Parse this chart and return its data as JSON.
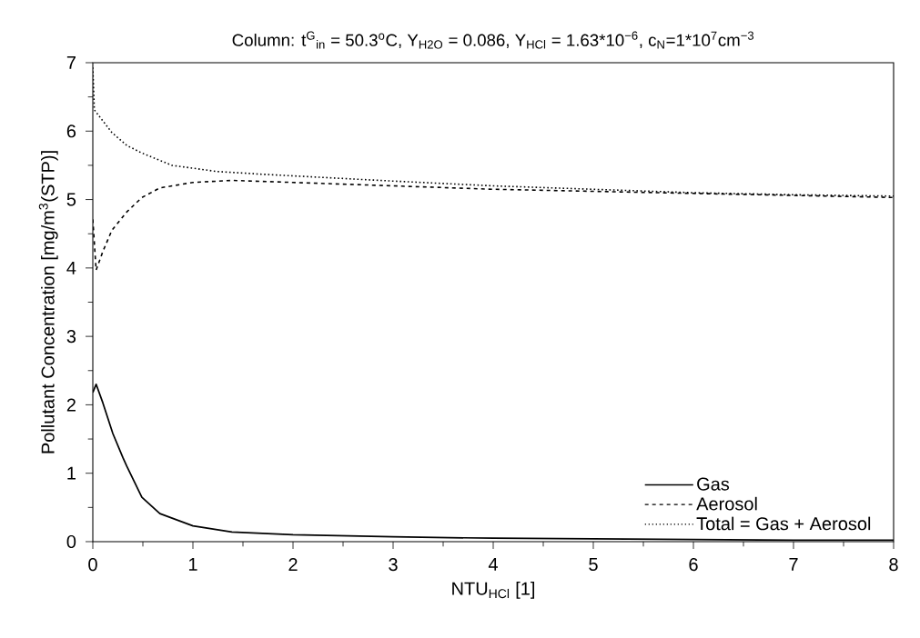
{
  "chart_data": {
    "type": "line",
    "title": "Column: t$^{G}$$_{in}$ = 50.3$^{o}$C, Y$_{H2O}$ = 0.086, Y$_{HCl}$ = 1.63*10$^{−6}$, c$_{N}$=1*10$^{7}$cm$^{−3}$",
    "xlabel": "NTU$_{HCl}$ [1]",
    "ylabel": "Pollutant Concentration [mg/m$^{3}$(STP)]",
    "xlim": [
      0,
      8
    ],
    "ylim": [
      0,
      7
    ],
    "xticks": [
      0,
      1,
      2,
      3,
      4,
      5,
      6,
      7,
      8
    ],
    "yticks": [
      0,
      1,
      2,
      3,
      4,
      5,
      6,
      7
    ],
    "grid": false,
    "legend": "bottom right",
    "marker": "none",
    "series": [
      {
        "name": "Gas",
        "color": "#000000",
        "line_style": "solid",
        "x": [
          0,
          0.033,
          0.1,
          0.2,
          0.3,
          0.34,
          0.49,
          0.67,
          1,
          1.39,
          2,
          3,
          4,
          5,
          6,
          7,
          8
        ],
        "values": [
          2.18,
          2.3,
          2.03,
          1.58,
          1.23,
          1.1,
          0.65,
          0.41,
          0.23,
          0.14,
          0.1,
          0.07,
          0.05,
          0.04,
          0.03,
          0.02,
          0.02
        ]
      },
      {
        "name": "Aerosol",
        "color": "#000000",
        "line_style": "dashed",
        "x": [
          0,
          0.033,
          0.1,
          0.19,
          0.34,
          0.49,
          0.67,
          1,
          1.39,
          2,
          3,
          4,
          5,
          6,
          7,
          8
        ],
        "values": [
          4.71,
          3.97,
          4.24,
          4.55,
          4.82,
          5.03,
          5.17,
          5.25,
          5.28,
          5.25,
          5.2,
          5.15,
          5.12,
          5.09,
          5.06,
          5.03
        ]
      },
      {
        "name": "Total = Gas + Aerosol",
        "color": "#000000",
        "line_style": "dotted",
        "x": [
          0,
          0.015,
          0.19,
          0.34,
          0.49,
          0.79,
          1.24,
          1.69,
          2.6,
          3,
          4,
          5,
          6,
          7,
          8
        ],
        "values": [
          6.93,
          6.31,
          5.98,
          5.79,
          5.68,
          5.5,
          5.41,
          5.37,
          5.3,
          5.27,
          5.2,
          5.15,
          5.1,
          5.07,
          5.05
        ]
      }
    ]
  }
}
